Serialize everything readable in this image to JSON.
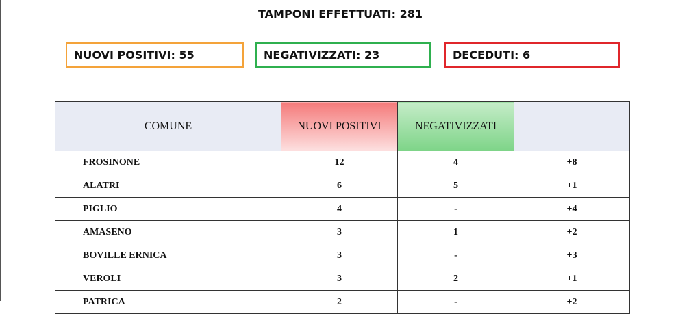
{
  "header": {
    "title": "TAMPONI EFFETTUATI: 281"
  },
  "summary": [
    {
      "label": "NUOVI POSITIVI: 55",
      "color": "#f4a33a"
    },
    {
      "label": "NEGATIVIZZATI: 23",
      "color": "#2fb04f"
    },
    {
      "label": "DECEDUTI: 6",
      "color": "#e0262b"
    }
  ],
  "table": {
    "columns": [
      "COMUNE",
      "NUOVI POSITIVI",
      "NEGATIVIZZATI"
    ],
    "rows": [
      [
        "FROSINONE",
        "12",
        "4",
        "+8"
      ],
      [
        "ALATRI",
        "6",
        "5",
        "+1"
      ],
      [
        "PIGLIO",
        "4",
        "-",
        "+4"
      ],
      [
        "AMASENO",
        "3",
        "1",
        "+2"
      ],
      [
        "BOVILLE ERNICA",
        "3",
        "-",
        "+3"
      ],
      [
        "VEROLI",
        "3",
        "2",
        "+1"
      ],
      [
        "PATRICA",
        "2",
        "-",
        "+2"
      ]
    ]
  }
}
